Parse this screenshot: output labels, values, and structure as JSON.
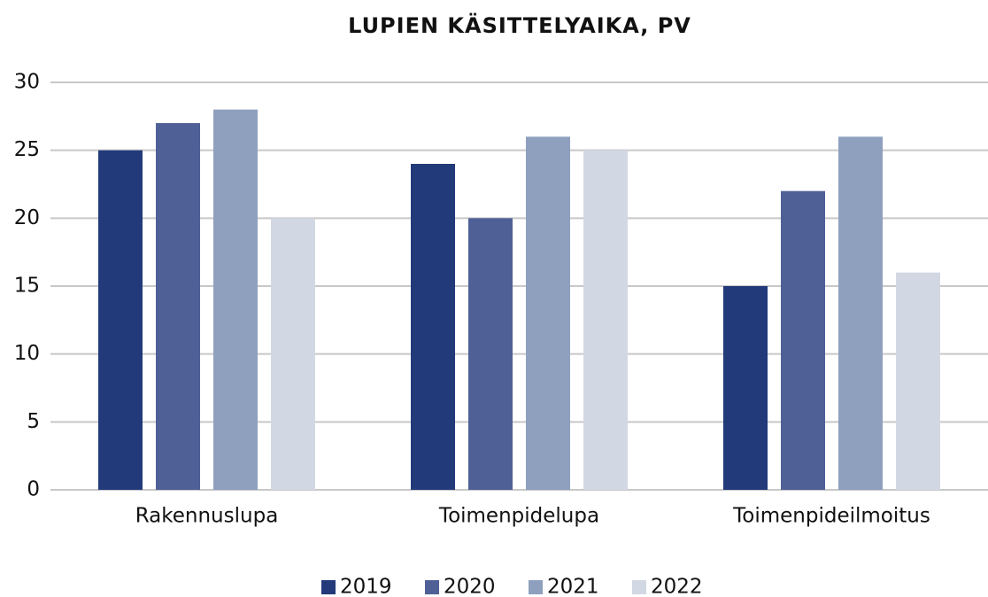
{
  "chart_data": {
    "type": "bar",
    "title": "LUPIEN KÄSITTELYAIKA, PV",
    "categories": [
      "Rakennuslupa",
      "Toimenpidelupa",
      "Toimenpideilmoitus"
    ],
    "series": [
      {
        "name": "2019",
        "color": "#233a7a",
        "values": [
          25,
          24,
          15
        ]
      },
      {
        "name": "2020",
        "color": "#4f6096",
        "values": [
          27,
          20,
          22
        ]
      },
      {
        "name": "2021",
        "color": "#8fa0bf",
        "values": [
          28,
          26,
          26
        ]
      },
      {
        "name": "2022",
        "color": "#d2d8e3",
        "values": [
          20,
          25,
          16
        ]
      }
    ],
    "ylim": [
      0,
      30
    ],
    "yticks": [
      0,
      5,
      10,
      15,
      20,
      25,
      30
    ],
    "grid": true,
    "legend": "bottom"
  }
}
